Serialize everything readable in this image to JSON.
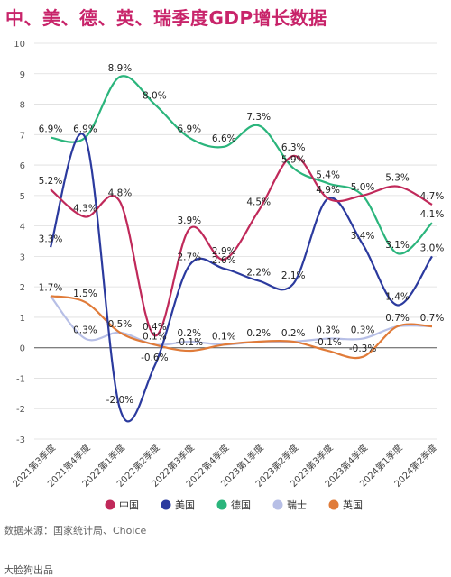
{
  "title": "中、美、德、英、瑞季度GDP增长数据",
  "source": "数据来源：国家统计局、Choice",
  "brand": "大脸狗出品",
  "chart_data": {
    "type": "line",
    "title": "中、美、德、英、瑞季度GDP增长数据",
    "categories": [
      "2021第3季度",
      "2021第4季度",
      "2022第1季度",
      "2022第2季度",
      "2022第3季度",
      "2022第4季度",
      "2023第1季度",
      "2023第2季度",
      "2023第3季度",
      "2023第4季度",
      "2024第1季度",
      "2024第2季度"
    ],
    "ylim": [
      -3,
      10
    ],
    "yticks": [
      -3,
      -2,
      -1,
      0,
      1,
      2,
      3,
      4,
      5,
      6,
      7,
      8,
      9,
      10
    ],
    "grid": true,
    "legend_position": "bottom",
    "series": [
      {
        "name": "中国",
        "color": "#c0295a",
        "values": [
          5.2,
          4.3,
          4.8,
          0.4,
          3.9,
          2.9,
          4.5,
          6.3,
          4.9,
          5.0,
          5.3,
          4.7
        ]
      },
      {
        "name": "美国",
        "color": "#2b3a9e",
        "values": [
          3.3,
          6.9,
          -2.0,
          -0.6,
          2.7,
          2.6,
          2.2,
          2.1,
          4.9,
          3.4,
          1.4,
          3.0
        ]
      },
      {
        "name": "德国",
        "color": "#2bb57c",
        "values": [
          6.9,
          6.9,
          8.9,
          8.0,
          6.9,
          6.6,
          7.3,
          5.9,
          5.4,
          5.0,
          3.1,
          4.1
        ]
      },
      {
        "name": "瑞士",
        "color": "#b7bfe6",
        "values": [
          1.7,
          0.3,
          0.5,
          0.1,
          0.2,
          0.1,
          0.2,
          0.2,
          0.3,
          0.3,
          0.7,
          0.7
        ]
      },
      {
        "name": "英国",
        "color": "#e07b39",
        "values": [
          1.7,
          1.5,
          0.5,
          0.1,
          -0.1,
          0.1,
          0.2,
          0.2,
          -0.1,
          -0.3,
          0.7,
          0.7
        ]
      }
    ],
    "data_labels": [
      {
        "series": "中国",
        "labels": [
          "5.2%",
          "4.3%",
          "4.8%",
          "0.4%",
          "3.9%",
          "2.9%",
          "4.5%",
          "6.3%",
          "4.9%",
          "5.0%",
          "5.3%",
          "4.7%"
        ]
      },
      {
        "series": "美国",
        "labels": [
          "3.3%",
          "6.9%",
          "-2.0%",
          "-0.6%",
          "2.7%",
          "2.6%",
          "2.2%",
          "2.1%",
          "",
          "3.4%",
          "1.4%",
          "3.0%"
        ]
      },
      {
        "series": "德国",
        "labels": [
          "6.9%",
          "",
          "8.9%",
          "8.0%",
          "6.9%",
          "6.6%",
          "7.3%",
          "5.9%",
          "5.4%",
          "",
          "3.1%",
          "4.1%"
        ]
      },
      {
        "series": "瑞士",
        "labels": [
          "",
          "0.3%",
          "0.5%",
          "0.1%",
          "0.2%",
          "0.1%",
          "0.2%",
          "0.2%",
          "0.3%",
          "0.3%",
          "",
          ""
        ]
      },
      {
        "series": "英国",
        "labels": [
          "1.7%",
          "1.5%",
          "",
          "",
          "-0.1%",
          "",
          "",
          "",
          "-0.1%",
          "-0.3%",
          "0.7%",
          "0.7%"
        ]
      }
    ]
  }
}
